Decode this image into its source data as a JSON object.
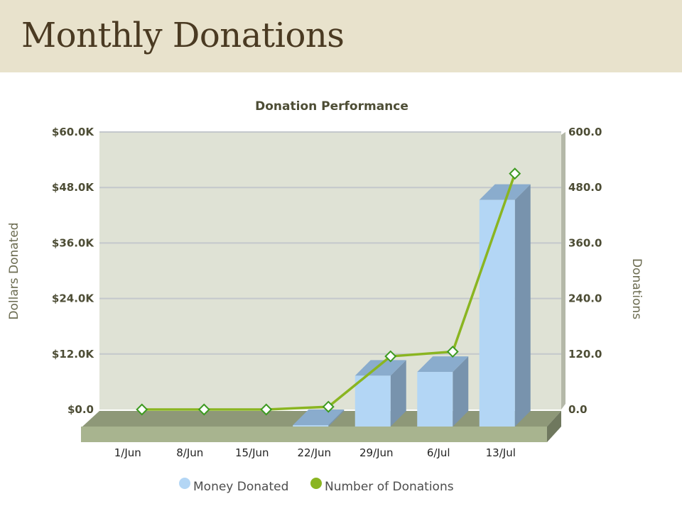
{
  "page": {
    "title": "Monthly Donations"
  },
  "chart_data": {
    "type": "bar",
    "title": "Donation Performance",
    "categories": [
      "1/Jun",
      "8/Jun",
      "15/Jun",
      "22/Jun",
      "29/Jun",
      "6/Jul",
      "13/Jul"
    ],
    "series": [
      {
        "name": "Money Donated",
        "type": "bar",
        "axis": "left",
        "values": [
          0,
          0,
          0,
          300,
          11000,
          11800,
          49000
        ],
        "color": "#b3d6f5"
      },
      {
        "name": "Number of Donations",
        "type": "line",
        "axis": "right",
        "values": [
          0,
          0,
          0,
          6,
          115,
          125,
          510
        ],
        "color": "#8ab521"
      }
    ],
    "ylabel": "Dollars Donated",
    "y2label": "Donations",
    "ylim": [
      0,
      60000
    ],
    "y2lim": [
      0,
      600
    ],
    "yticks": [
      "$0.0",
      "$12.0K",
      "$24.0K",
      "$36.0K",
      "$48.0K",
      "$60.0K"
    ],
    "y2ticks": [
      "0.0",
      "120.0",
      "240.0",
      "360.0",
      "480.0",
      "600.0"
    ],
    "grid": true,
    "legend_position": "bottom",
    "colors": {
      "plot_bg": "#dfe2d5",
      "floor": "#a8b48f",
      "grid": "#c4c8cc"
    }
  }
}
